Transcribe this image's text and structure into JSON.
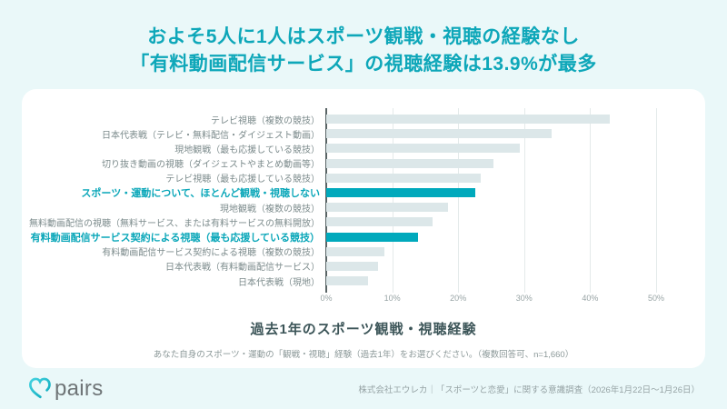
{
  "page": {
    "background": "#EAF8F9",
    "accent": "#0EA7B9"
  },
  "title": {
    "line1": "およそ5人に1人はスポーツ観戦・視聴の経験なし",
    "line2": "「有料動画配信サービス」の視聴経験は13.9%が最多"
  },
  "chart_data": {
    "type": "bar",
    "orientation": "horizontal",
    "title": "過去1年のスポーツ観戦・視聴経験",
    "note": "あなた自身のスポーツ・運動の「観戦・視聴」経験（過去1年）をお選びください。（複数回答可、n=1,660）",
    "xlim": [
      0,
      50
    ],
    "x_ticks": [
      "0%",
      "10%",
      "20%",
      "30%",
      "40%",
      "50%"
    ],
    "grid": true,
    "legend": false,
    "categories": [
      "テレビ視聴（複数の競技）",
      "日本代表戦（テレビ・無料配信・ダイジェスト動画）",
      "現地観戦（最も応援している競技）",
      "切り抜き動画の視聴（ダイジェストやまとめ動画等）",
      "テレビ視聴（最も応援している競技）",
      "スポーツ・運動について、ほとんど観戦・視聴しない",
      "現地観戦（複数の競技）",
      "無料動画配信の視聴（無料サービス、または有料サービスの無料開放）",
      "有料動画配信サービス契約による視聴（最も応援している競技）",
      "有料動画配信サービス契約による視聴（複数の競技）",
      "日本代表戦（有料動画配信サービス）",
      "日本代表戦（現地）"
    ],
    "values": [
      43.0,
      34.2,
      29.4,
      25.4,
      23.4,
      22.6,
      18.4,
      16.1,
      13.9,
      8.8,
      7.9,
      6.4
    ],
    "highlighted_indices": [
      5,
      8
    ],
    "bar_color": "#DCE7E9",
    "highlight_color": "#00A9BC",
    "label_color": "#7C8B8C",
    "highlight_label_color": "#0BA7B9"
  },
  "footer": {
    "logo_text": "pairs",
    "source": "株式会社エウレカ｜「スポーツと恋愛」に関する意識調査（2026年1月22日〜1月26日）"
  }
}
